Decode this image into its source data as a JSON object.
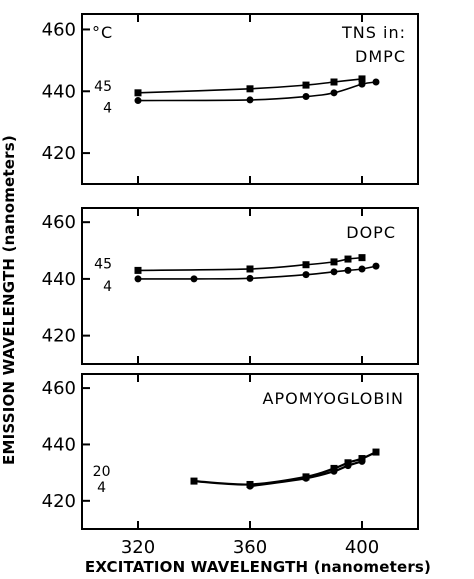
{
  "chart_data": [
    {
      "type": "line",
      "panel_label": "TNS in:",
      "panel_label_2": "DMPC",
      "unit_label": "°C",
      "xlim": [
        300,
        420
      ],
      "ylim": [
        410,
        465
      ],
      "yticks": [
        420,
        440,
        460
      ],
      "series": [
        {
          "name": "45",
          "marker": "square",
          "x": [
            320,
            360,
            380,
            390,
            400
          ],
          "y": [
            439.5,
            440.8,
            442.0,
            443.0,
            444.0
          ]
        },
        {
          "name": "4",
          "marker": "circle",
          "x": [
            320,
            360,
            380,
            390,
            400,
            405
          ],
          "y": [
            437.0,
            437.2,
            438.3,
            439.5,
            442.3,
            443.0
          ]
        }
      ]
    },
    {
      "type": "line",
      "panel_label": "DOPC",
      "xlim": [
        300,
        420
      ],
      "ylim": [
        410,
        465
      ],
      "yticks": [
        420,
        440,
        460
      ],
      "series": [
        {
          "name": "45",
          "marker": "square",
          "x": [
            320,
            360,
            380,
            390,
            395,
            400
          ],
          "y": [
            443.0,
            443.5,
            445.0,
            446.0,
            447.0,
            447.5
          ]
        },
        {
          "name": "4",
          "marker": "circle",
          "x": [
            320,
            340,
            360,
            380,
            390,
            395,
            400,
            405
          ],
          "y": [
            440.0,
            440.0,
            440.2,
            441.5,
            442.5,
            443.0,
            443.5,
            444.5
          ]
        }
      ]
    },
    {
      "type": "line",
      "panel_label": "APOMYOGLOBIN",
      "xlim": [
        300,
        420
      ],
      "ylim": [
        410,
        465
      ],
      "yticks": [
        420,
        440,
        460
      ],
      "xticks": [
        320,
        360,
        400
      ],
      "xlabel": "EXCITATION WAVELENGTH (nanometers)",
      "ylabel": "EMISSION WAVELENGTH (nanometers)",
      "series": [
        {
          "name": "20",
          "marker": "square",
          "x": [
            340,
            360,
            380,
            390,
            395,
            400,
            405
          ],
          "y": [
            427.0,
            425.8,
            428.5,
            431.5,
            433.5,
            435.0,
            437.3
          ]
        },
        {
          "name": "4",
          "marker": "circle",
          "x": [
            360,
            380,
            390,
            395,
            400
          ],
          "y": [
            425.2,
            428.0,
            430.5,
            432.5,
            434.0
          ]
        }
      ]
    }
  ]
}
